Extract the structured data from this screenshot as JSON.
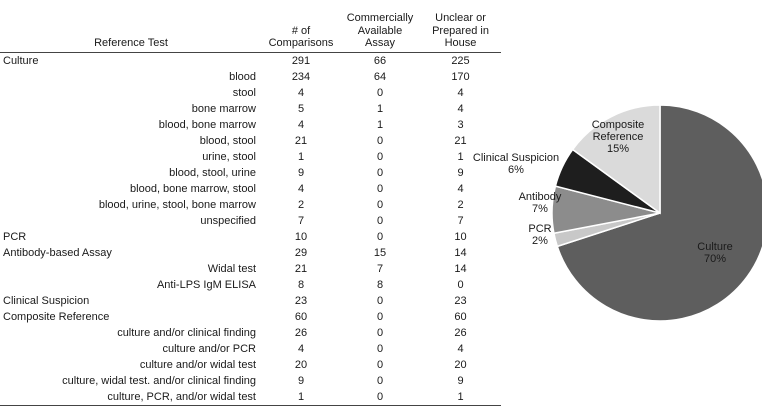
{
  "table": {
    "headers": [
      "Reference Test",
      "# of\nComparisons",
      "Commercially\nAvailable\nAssay",
      "Unclear or\nPrepared in\nHouse"
    ],
    "rows": [
      {
        "label": "Culture",
        "level": 0,
        "values": [
          "291",
          "66",
          "225"
        ]
      },
      {
        "label": "blood",
        "level": 1,
        "values": [
          "234",
          "64",
          "170"
        ]
      },
      {
        "label": "stool",
        "level": 1,
        "values": [
          "4",
          "0",
          "4"
        ]
      },
      {
        "label": "bone marrow",
        "level": 1,
        "values": [
          "5",
          "1",
          "4"
        ]
      },
      {
        "label": "blood, bone marrow",
        "level": 1,
        "values": [
          "4",
          "1",
          "3"
        ]
      },
      {
        "label": "blood, stool",
        "level": 1,
        "values": [
          "21",
          "0",
          "21"
        ]
      },
      {
        "label": "urine, stool",
        "level": 1,
        "values": [
          "1",
          "0",
          "1"
        ]
      },
      {
        "label": "blood, stool, urine",
        "level": 1,
        "values": [
          "9",
          "0",
          "9"
        ]
      },
      {
        "label": "blood, bone marrow, stool",
        "level": 1,
        "values": [
          "4",
          "0",
          "4"
        ]
      },
      {
        "label": "blood, urine, stool, bone marrow",
        "level": 1,
        "values": [
          "2",
          "0",
          "2"
        ]
      },
      {
        "label": "unspecified",
        "level": 1,
        "values": [
          "7",
          "0",
          "7"
        ]
      },
      {
        "label": "PCR",
        "level": 0,
        "values": [
          "10",
          "0",
          "10"
        ]
      },
      {
        "label": "Antibody-based Assay",
        "level": 0,
        "values": [
          "29",
          "15",
          "14"
        ]
      },
      {
        "label": "Widal test",
        "level": 1,
        "values": [
          "21",
          "7",
          "14"
        ]
      },
      {
        "label": "Anti-LPS IgM ELISA",
        "level": 1,
        "values": [
          "8",
          "8",
          "0"
        ]
      },
      {
        "label": "Clinical Suspicion",
        "level": 0,
        "values": [
          "23",
          "0",
          "23"
        ]
      },
      {
        "label": "Composite Reference",
        "level": 0,
        "values": [
          "60",
          "0",
          "60"
        ]
      },
      {
        "label": "culture and/or clinical finding",
        "level": 1,
        "values": [
          "26",
          "0",
          "26"
        ]
      },
      {
        "label": "culture and/or PCR",
        "level": 1,
        "values": [
          "4",
          "0",
          "4"
        ]
      },
      {
        "label": "culture and/or widal test",
        "level": 1,
        "values": [
          "20",
          "0",
          "20"
        ]
      },
      {
        "label": "culture, widal test. and/or clinical finding",
        "level": 1,
        "values": [
          "9",
          "0",
          "9"
        ]
      },
      {
        "label": "culture, PCR, and/or widal test",
        "level": 1,
        "values": [
          "1",
          "0",
          "1"
        ]
      }
    ]
  },
  "chart_data": {
    "type": "pie",
    "slices": [
      {
        "name": "Culture",
        "label_lines": [
          "Culture",
          "70%"
        ],
        "value": 70,
        "color": "#5e5e5e"
      },
      {
        "name": "PCR",
        "label_lines": [
          "PCR",
          "2%"
        ],
        "value": 2,
        "color": "#c8c8c8"
      },
      {
        "name": "Antibody",
        "label_lines": [
          "Antibody",
          "7%"
        ],
        "value": 7,
        "color": "#8c8c8c"
      },
      {
        "name": "Clinical Suspicion",
        "label_lines": [
          "Clinical Suspicion",
          "6%"
        ],
        "value": 6,
        "color": "#1e1e1e"
      },
      {
        "name": "Composite Reference",
        "label_lines": [
          "Composite",
          "Reference",
          "15%"
        ],
        "value": 15,
        "color": "#dadada"
      }
    ]
  }
}
